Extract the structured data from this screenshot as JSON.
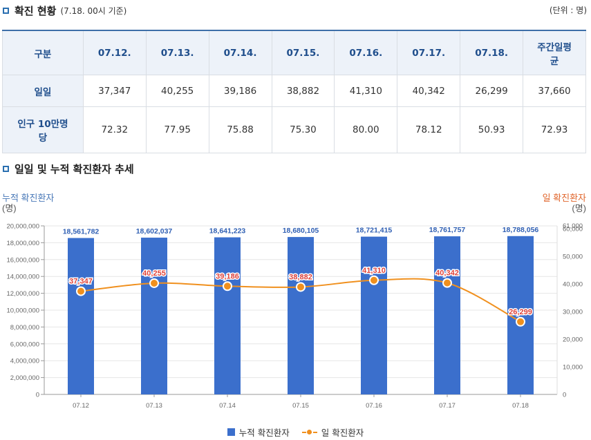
{
  "section1": {
    "title": "확진 현황",
    "subtitle": "(7.18. 00시 기준)",
    "unit": "(단위 : 명)"
  },
  "table": {
    "headers": [
      "구분",
      "07.12.",
      "07.13.",
      "07.14.",
      "07.15.",
      "07.16.",
      "07.17.",
      "07.18.",
      "주간일평균"
    ],
    "rows": [
      {
        "label": "일일",
        "cells": [
          "37,347",
          "40,255",
          "39,186",
          "38,882",
          "41,310",
          "40,342",
          "26,299",
          "37,660"
        ]
      },
      {
        "label": "인구 10만명당",
        "cells": [
          "72.32",
          "77.95",
          "75.88",
          "75.30",
          "80.00",
          "78.12",
          "50.93",
          "72.93"
        ]
      }
    ]
  },
  "section2": {
    "title": "일일 및 누적 확진환자 추세"
  },
  "chart_data": {
    "type": "bar+line",
    "categories": [
      "07.12",
      "07.13",
      "07.14",
      "07.15",
      "07.16",
      "07.17",
      "07.18"
    ],
    "series": [
      {
        "name": "누적 확진환자",
        "type": "bar",
        "axis": "left",
        "color": "#3b6fcc",
        "values": [
          18561782,
          18602037,
          18641223,
          18680105,
          18721415,
          18761757,
          18788056
        ],
        "labels": [
          "18,561,782",
          "18,602,037",
          "18,641,223",
          "18,680,105",
          "18,721,415",
          "18,761,757",
          "18,788,056"
        ]
      },
      {
        "name": "일 확진환자",
        "type": "line",
        "axis": "right",
        "color": "#f0901e",
        "values": [
          37347,
          40255,
          39186,
          38882,
          41310,
          40342,
          26299
        ],
        "labels": [
          "37,347",
          "40,255",
          "39,186",
          "38,882",
          "41,310",
          "40,342",
          "26,299"
        ]
      }
    ],
    "left_axis": {
      "title": "누적 확진환자",
      "unit": "(명)",
      "min": 0,
      "max": 20000000,
      "ticks": [
        "0",
        "2,000,000",
        "4,000,000",
        "6,000,000",
        "8,000,000",
        "10,000,000",
        "12,000,000",
        "14,000,000",
        "16,000,000",
        "18,000,000",
        "20,000,000"
      ]
    },
    "right_axis": {
      "title": "일 확진환자",
      "unit": "(명)",
      "min": 0,
      "max": 61000,
      "ticks": [
        "0",
        "10,000",
        "20,000",
        "30,000",
        "40,000",
        "50,000",
        "60,000"
      ],
      "top_ticks": [
        "61,000",
        "60,000"
      ]
    },
    "grid": true,
    "legend": "bottom"
  }
}
